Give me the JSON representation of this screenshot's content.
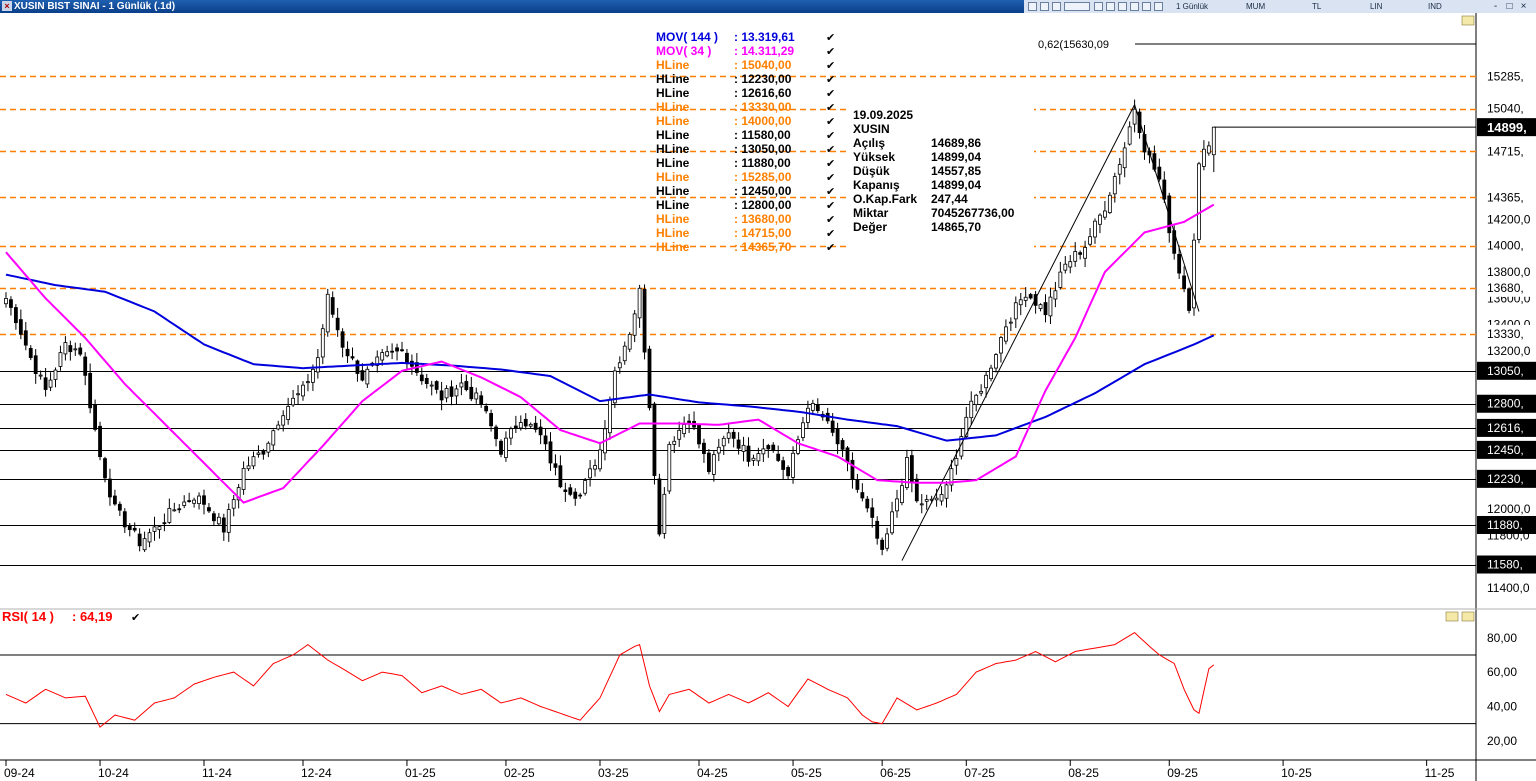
{
  "window": {
    "title": "XUSIN BIST SINAI - 1 Günlük (.1d)",
    "close_glyph": "×"
  },
  "toolbar": {
    "period": "1 Günlük",
    "style": "MUM",
    "currency": "TL",
    "scale": "LIN",
    "indicator": "IND",
    "minimize": "-",
    "restore": "□",
    "close": "×"
  },
  "colors": {
    "up": "#000000",
    "down": "#000000",
    "mov144": "#0000dd",
    "mov34": "#ff00ff",
    "hline_orange": "#ff8000",
    "hline_black": "#000000",
    "rsi": "#ff0000",
    "price_box": "#000000"
  },
  "indicators": {
    "mov144": {
      "label": "MOV( 144 )",
      "value": ": 13.319,61"
    },
    "mov34": {
      "label": "MOV( 34 )",
      "value": ": 14.311,29"
    },
    "rsi": {
      "label": "RSI( 14 )",
      "value": ": 64,19"
    }
  },
  "hlines": [
    {
      "label": "HLine",
      "value": ": 15040,00",
      "color": "orange"
    },
    {
      "label": "HLine",
      "value": ": 12230,00",
      "color": "black"
    },
    {
      "label": "HLine",
      "value": ": 12616,60",
      "color": "black"
    },
    {
      "label": "HLine",
      "value": ": 13330,00",
      "color": "orange"
    },
    {
      "label": "HLine",
      "value": ": 14000,00",
      "color": "orange"
    },
    {
      "label": "HLine",
      "value": ": 11580,00",
      "color": "black"
    },
    {
      "label": "HLine",
      "value": ": 13050,00",
      "color": "black"
    },
    {
      "label": "HLine",
      "value": ": 11880,00",
      "color": "black"
    },
    {
      "label": "HLine",
      "value": ": 15285,00",
      "color": "orange"
    },
    {
      "label": "HLine",
      "value": ": 12450,00",
      "color": "black"
    },
    {
      "label": "HLine",
      "value": ": 12800,00",
      "color": "black"
    },
    {
      "label": "HLine",
      "value": ": 13680,00",
      "color": "orange"
    },
    {
      "label": "HLine",
      "value": ": 14715,00",
      "color": "orange"
    },
    {
      "label": "HLine",
      "value": ": 14365,70",
      "color": "orange"
    }
  ],
  "hline_levels": [
    {
      "price": 15285,
      "label": "15285,",
      "color": "orange"
    },
    {
      "price": 15040,
      "label": "15040,",
      "color": "orange"
    },
    {
      "price": 14715,
      "label": "14715,",
      "color": "orange"
    },
    {
      "price": 14365.7,
      "label": "14365,",
      "color": "orange"
    },
    {
      "price": 14000,
      "label": "14000,",
      "color": "orange"
    },
    {
      "price": 13680,
      "label": "13680,",
      "color": "orange"
    },
    {
      "price": 13330,
      "label": "13330,",
      "color": "orange"
    },
    {
      "price": 13050,
      "label": "13050,",
      "color": "black"
    },
    {
      "price": 12800,
      "label": "12800,",
      "color": "black"
    },
    {
      "price": 12616.6,
      "label": "12616,",
      "color": "black"
    },
    {
      "price": 12450,
      "label": "12450,",
      "color": "black"
    },
    {
      "price": 12230,
      "label": "12230,",
      "color": "black"
    },
    {
      "price": 11880,
      "label": "11880,",
      "color": "black"
    },
    {
      "price": 11580,
      "label": "11580,",
      "color": "black"
    }
  ],
  "infobox": {
    "date": "19.09.2025",
    "symbol": "XUSIN",
    "rows": [
      {
        "k": "Açılış",
        "v": "14689,86"
      },
      {
        "k": "Yüksek",
        "v": "14899,04"
      },
      {
        "k": "Düşük",
        "v": "14557,85"
      },
      {
        "k": "Kapanış",
        "v": "14899,04"
      },
      {
        "k": "O.Kap.Fark",
        "v": "247,44"
      },
      {
        "k": "Miktar",
        "v": "7045267736,00"
      },
      {
        "k": "Değer",
        "v": "14865,70"
      }
    ]
  },
  "fib": {
    "label": "0,62(15630,09"
  },
  "last_price": {
    "price": 14899,
    "label": "14899,"
  },
  "chart_data": {
    "type": "candlestick",
    "y_ticks": [
      {
        "v": 14200,
        "t": "14200,0"
      },
      {
        "v": 13800,
        "t": "13800,0"
      },
      {
        "v": 13600,
        "t": "13600,0"
      },
      {
        "v": 13400,
        "t": "13400,0"
      },
      {
        "v": 13200,
        "t": "13200,0"
      },
      {
        "v": 12000,
        "t": "12000,0"
      },
      {
        "v": 11800,
        "t": "11800,0"
      },
      {
        "v": 11400,
        "t": "11400,0"
      }
    ],
    "ylim": [
      11250,
      15750
    ],
    "x_ticks": [
      {
        "t": "09-24",
        "i": -2
      },
      {
        "t": "10-24",
        "i": 19
      },
      {
        "t": "11-24",
        "i": 40
      },
      {
        "t": "12-24",
        "i": 60
      },
      {
        "t": "01-25",
        "i": 81
      },
      {
        "t": "02-25",
        "i": 101
      },
      {
        "t": "03-25",
        "i": 120
      },
      {
        "t": "04-25",
        "i": 140
      },
      {
        "t": "05-25",
        "i": 159
      },
      {
        "t": "06-25",
        "i": 177
      },
      {
        "t": "07-25",
        "i": 194
      },
      {
        "t": "08-25",
        "i": 215
      },
      {
        "t": "09-25",
        "i": 235
      },
      {
        "t": "10-25",
        "i": 258
      },
      {
        "t": "11-25",
        "i": 287
      }
    ],
    "anchors": [
      [
        0,
        13600
      ],
      [
        2,
        13450
      ],
      [
        5,
        13150
      ],
      [
        8,
        12900
      ],
      [
        12,
        13250
      ],
      [
        15,
        13200
      ],
      [
        19,
        12400
      ],
      [
        22,
        12000
      ],
      [
        27,
        11750
      ],
      [
        30,
        11850
      ],
      [
        34,
        12000
      ],
      [
        38,
        12100
      ],
      [
        40,
        12050
      ],
      [
        44,
        11850
      ],
      [
        48,
        12300
      ],
      [
        52,
        12450
      ],
      [
        56,
        12750
      ],
      [
        60,
        12900
      ],
      [
        63,
        13150
      ],
      [
        65,
        13600
      ],
      [
        68,
        13250
      ],
      [
        72,
        13000
      ],
      [
        76,
        13150
      ],
      [
        80,
        13200
      ],
      [
        84,
        13000
      ],
      [
        88,
        12850
      ],
      [
        92,
        12950
      ],
      [
        96,
        12800
      ],
      [
        100,
        12450
      ],
      [
        104,
        12700
      ],
      [
        108,
        12550
      ],
      [
        112,
        12200
      ],
      [
        116,
        12100
      ],
      [
        120,
        12450
      ],
      [
        123,
        13050
      ],
      [
        126,
        13350
      ],
      [
        128,
        13650
      ],
      [
        130,
        12800
      ],
      [
        132,
        11800
      ],
      [
        134,
        12500
      ],
      [
        138,
        12700
      ],
      [
        142,
        12300
      ],
      [
        146,
        12600
      ],
      [
        150,
        12400
      ],
      [
        154,
        12500
      ],
      [
        158,
        12250
      ],
      [
        162,
        12800
      ],
      [
        165,
        12700
      ],
      [
        168,
        12500
      ],
      [
        172,
        12150
      ],
      [
        175,
        11900
      ],
      [
        177,
        11650
      ],
      [
        179,
        11950
      ],
      [
        182,
        12350
      ],
      [
        184,
        12050
      ],
      [
        187,
        12050
      ],
      [
        190,
        12150
      ],
      [
        194,
        12700
      ],
      [
        198,
        13000
      ],
      [
        202,
        13400
      ],
      [
        206,
        13650
      ],
      [
        210,
        13500
      ],
      [
        214,
        13850
      ],
      [
        218,
        14000
      ],
      [
        222,
        14300
      ],
      [
        226,
        14750
      ],
      [
        228,
        15050
      ],
      [
        230,
        14750
      ],
      [
        233,
        14500
      ],
      [
        236,
        13950
      ],
      [
        239,
        13550
      ],
      [
        241,
        14600
      ],
      [
        244,
        14899
      ]
    ],
    "mov144": {
      "name": "MOV( 144 )",
      "points": [
        [
          0,
          13780
        ],
        [
          10,
          13700
        ],
        [
          20,
          13650
        ],
        [
          30,
          13500
        ],
        [
          40,
          13250
        ],
        [
          50,
          13100
        ],
        [
          60,
          13070
        ],
        [
          70,
          13090
        ],
        [
          80,
          13110
        ],
        [
          90,
          13090
        ],
        [
          100,
          13060
        ],
        [
          110,
          13010
        ],
        [
          120,
          12820
        ],
        [
          130,
          12870
        ],
        [
          140,
          12810
        ],
        [
          150,
          12780
        ],
        [
          160,
          12740
        ],
        [
          170,
          12680
        ],
        [
          180,
          12630
        ],
        [
          190,
          12520
        ],
        [
          200,
          12560
        ],
        [
          210,
          12700
        ],
        [
          220,
          12880
        ],
        [
          230,
          13100
        ],
        [
          240,
          13250
        ],
        [
          244,
          13319.61
        ]
      ]
    },
    "mov34": {
      "name": "MOV( 34 )",
      "points": [
        [
          0,
          13950
        ],
        [
          8,
          13600
        ],
        [
          16,
          13300
        ],
        [
          24,
          12950
        ],
        [
          32,
          12650
        ],
        [
          40,
          12350
        ],
        [
          48,
          12050
        ],
        [
          56,
          12160
        ],
        [
          64,
          12480
        ],
        [
          72,
          12820
        ],
        [
          80,
          13050
        ],
        [
          88,
          13120
        ],
        [
          96,
          13000
        ],
        [
          104,
          12850
        ],
        [
          112,
          12600
        ],
        [
          120,
          12500
        ],
        [
          128,
          12650
        ],
        [
          136,
          12650
        ],
        [
          144,
          12640
        ],
        [
          152,
          12680
        ],
        [
          160,
          12500
        ],
        [
          168,
          12400
        ],
        [
          176,
          12220
        ],
        [
          184,
          12200
        ],
        [
          190,
          12200
        ],
        [
          196,
          12220
        ],
        [
          204,
          12400
        ],
        [
          210,
          12900
        ],
        [
          216,
          13300
        ],
        [
          222,
          13800
        ],
        [
          230,
          14100
        ],
        [
          238,
          14180
        ],
        [
          244,
          14311.29
        ]
      ]
    },
    "rsi": {
      "name": "RSI( 14 )",
      "ylim": [
        10,
        95
      ],
      "y_ticks": [
        {
          "v": 80,
          "t": "80,00"
        },
        {
          "v": 60,
          "t": "60,00"
        },
        {
          "v": 40,
          "t": "40,00"
        },
        {
          "v": 20,
          "t": "20,00"
        }
      ],
      "levels": [
        70,
        30
      ],
      "points": [
        [
          0,
          47
        ],
        [
          4,
          42
        ],
        [
          8,
          50
        ],
        [
          12,
          45
        ],
        [
          16,
          46
        ],
        [
          19,
          28
        ],
        [
          22,
          35
        ],
        [
          26,
          32
        ],
        [
          30,
          42
        ],
        [
          34,
          45
        ],
        [
          38,
          53
        ],
        [
          42,
          57
        ],
        [
          46,
          60
        ],
        [
          50,
          52
        ],
        [
          54,
          65
        ],
        [
          58,
          70
        ],
        [
          61,
          76
        ],
        [
          65,
          67
        ],
        [
          68,
          62
        ],
        [
          72,
          55
        ],
        [
          76,
          60
        ],
        [
          80,
          58
        ],
        [
          84,
          48
        ],
        [
          88,
          52
        ],
        [
          92,
          47
        ],
        [
          96,
          50
        ],
        [
          100,
          42
        ],
        [
          104,
          45
        ],
        [
          108,
          40
        ],
        [
          112,
          36
        ],
        [
          116,
          32
        ],
        [
          120,
          45
        ],
        [
          124,
          70
        ],
        [
          127,
          75
        ],
        [
          128,
          76
        ],
        [
          130,
          52
        ],
        [
          132,
          37
        ],
        [
          134,
          47
        ],
        [
          138,
          50
        ],
        [
          142,
          42
        ],
        [
          146,
          47
        ],
        [
          150,
          42
        ],
        [
          154,
          48
        ],
        [
          158,
          40
        ],
        [
          162,
          56
        ],
        [
          166,
          50
        ],
        [
          170,
          45
        ],
        [
          173,
          35
        ],
        [
          175,
          31
        ],
        [
          177,
          30
        ],
        [
          180,
          45
        ],
        [
          184,
          38
        ],
        [
          188,
          42
        ],
        [
          192,
          47
        ],
        [
          196,
          60
        ],
        [
          200,
          65
        ],
        [
          204,
          67
        ],
        [
          208,
          72
        ],
        [
          212,
          66
        ],
        [
          216,
          72
        ],
        [
          220,
          74
        ],
        [
          224,
          76
        ],
        [
          228,
          83
        ],
        [
          231,
          75
        ],
        [
          233,
          70
        ],
        [
          236,
          65
        ],
        [
          238,
          50
        ],
        [
          240,
          38
        ],
        [
          241,
          36
        ],
        [
          243,
          62
        ],
        [
          244,
          64.19
        ]
      ]
    }
  }
}
